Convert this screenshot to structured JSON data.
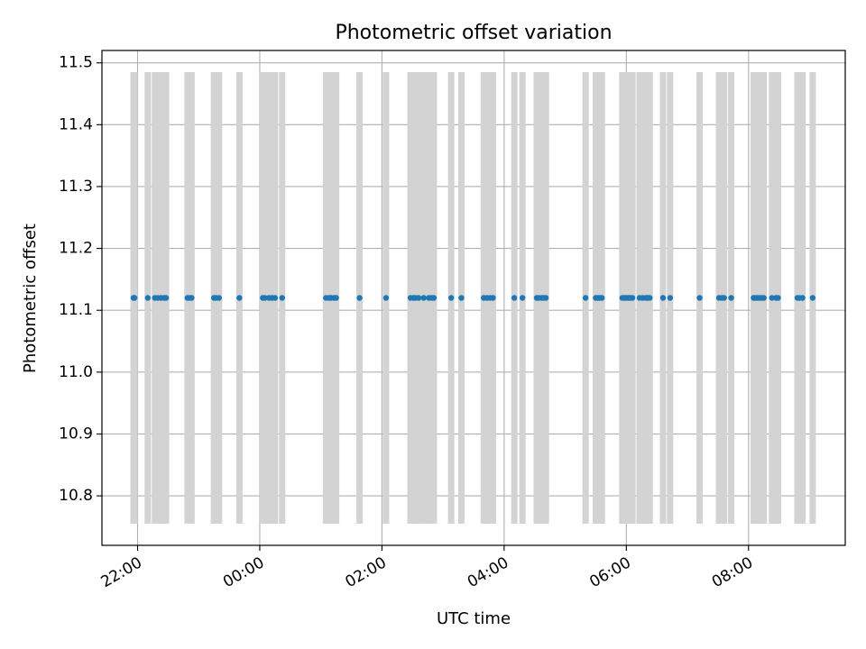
{
  "chart_data": {
    "type": "scatter",
    "title": "Photometric offset variation",
    "xlabel": "UTC time",
    "ylabel": "Photometric offset",
    "x_unit": "hours of day (UTC), plotted on a continuous time axis starting the evening before",
    "xlim": [
      "21:25",
      "09:35"
    ],
    "ylim": [
      10.72,
      11.52
    ],
    "x_ticks": [
      "22:00",
      "00:00",
      "02:00",
      "04:00",
      "06:00",
      "08:00"
    ],
    "y_ticks": [
      "10.8",
      "10.9",
      "11.0",
      "11.1",
      "11.2",
      "11.3",
      "11.4",
      "11.5"
    ],
    "grid": true,
    "colors": {
      "points": "#1f77b4",
      "bands": "#d3d3d3",
      "grid": "#b0b0b0"
    },
    "bands_y_range": [
      10.755,
      11.485
    ],
    "bands": [
      "21:56",
      "21:57",
      "22:10",
      "22:17",
      "22:20",
      "22:23",
      "22:26",
      "22:28",
      "22:49",
      "22:51",
      "22:53",
      "23:15",
      "23:17",
      "23:20",
      "23:40",
      "00:03",
      "00:05",
      "00:09",
      "00:12",
      "00:15",
      "00:22",
      "01:05",
      "01:08",
      "01:10",
      "01:13",
      "01:15",
      "01:38",
      "02:04",
      "02:28",
      "02:31",
      "02:33",
      "02:36",
      "02:41",
      "02:46",
      "02:49",
      "02:51",
      "03:08",
      "03:18",
      "03:40",
      "03:43",
      "03:46",
      "03:49",
      "04:10",
      "04:18",
      "04:32",
      "04:34",
      "04:37",
      "04:39",
      "04:41",
      "05:20",
      "05:30",
      "05:32",
      "05:34",
      "05:36",
      "05:56",
      "05:58",
      "06:00",
      "06:02",
      "06:04",
      "06:06",
      "06:13",
      "06:16",
      "06:19",
      "06:21",
      "06:23",
      "06:36",
      "06:43",
      "07:12",
      "07:31",
      "07:34",
      "07:36",
      "07:43",
      "08:05",
      "08:07",
      "08:09",
      "08:11",
      "08:13",
      "08:15",
      "08:23",
      "08:27",
      "08:29",
      "08:48",
      "08:50",
      "08:53",
      "09:03"
    ],
    "series": [
      {
        "points_y": 11.12,
        "x": [
          "21:56",
          "21:57",
          "22:10",
          "22:17",
          "22:20",
          "22:23",
          "22:26",
          "22:28",
          "22:49",
          "22:51",
          "22:53",
          "23:15",
          "23:17",
          "23:20",
          "23:40",
          "00:03",
          "00:05",
          "00:09",
          "00:12",
          "00:15",
          "00:22",
          "01:05",
          "01:08",
          "01:10",
          "01:13",
          "01:15",
          "01:38",
          "02:04",
          "02:28",
          "02:31",
          "02:33",
          "02:36",
          "02:41",
          "02:46",
          "02:49",
          "02:51",
          "03:08",
          "03:18",
          "03:40",
          "03:43",
          "03:46",
          "03:49",
          "04:10",
          "04:18",
          "04:32",
          "04:34",
          "04:37",
          "04:39",
          "04:41",
          "05:20",
          "05:30",
          "05:32",
          "05:34",
          "05:36",
          "05:56",
          "05:58",
          "06:00",
          "06:02",
          "06:04",
          "06:06",
          "06:13",
          "06:16",
          "06:19",
          "06:21",
          "06:23",
          "06:36",
          "06:43",
          "07:12",
          "07:31",
          "07:34",
          "07:36",
          "07:43",
          "08:05",
          "08:07",
          "08:09",
          "08:11",
          "08:13",
          "08:15",
          "08:23",
          "08:27",
          "08:29",
          "08:48",
          "08:50",
          "08:53",
          "09:03"
        ]
      }
    ]
  }
}
